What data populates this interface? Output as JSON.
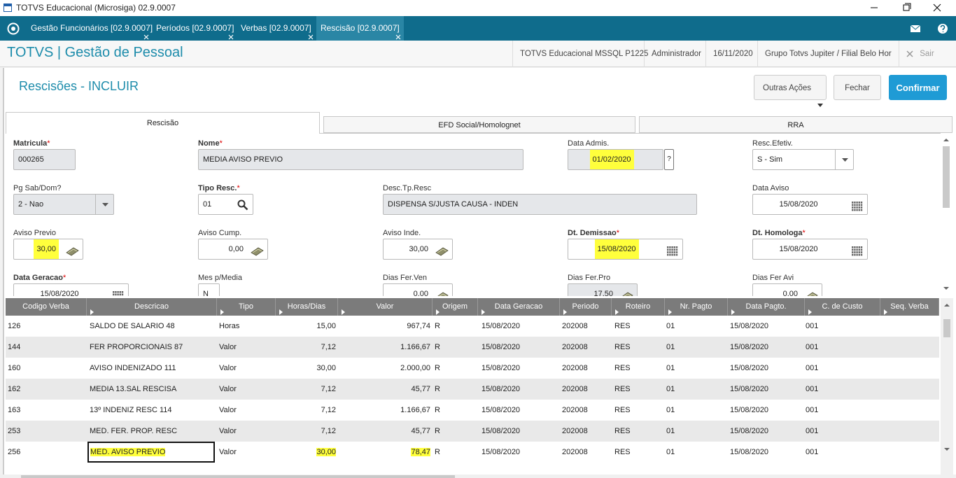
{
  "window": {
    "title": "TOTVS Educacional (Microsiga) 02.9.0007"
  },
  "tabs": [
    "Gestão Funcionários [02.9.0007]",
    "Períodos [02.9.0007]",
    "Verbas [02.9.0007]",
    "Rescisão [02.9.0007]"
  ],
  "header": {
    "app": "TOTVS | Gestão de Pessoal",
    "items": [
      "TOTVS Educacional MSSQL P1225",
      "Administrador",
      "16/11/2020",
      "Grupo Totvs Jupiter / Filial Belo Hor"
    ],
    "exit": "Sair"
  },
  "page": {
    "title": "Rescisões - INCLUIR",
    "buttons": [
      "Outras Ações",
      "Fechar",
      "Confirmar"
    ],
    "help_button": "?"
  },
  "form_tabs": [
    "Rescisão",
    "EFD Social/Homolognet",
    "RRA"
  ],
  "required_mark": "*",
  "fields": [
    {
      "label": "Matricula",
      "required": true,
      "value": "000265"
    },
    {
      "label": "Nome",
      "required": true,
      "value": "MEDIA AVISO PREVIO"
    },
    {
      "label": "Data Admis.",
      "required": false,
      "value": "01/02/2020"
    },
    {
      "label": "Resc.Efetiv.",
      "required": false,
      "value": "S - Sim"
    },
    {
      "label": "Pg Sab/Dom?",
      "required": false,
      "value": "2 - Nao"
    },
    {
      "label": "Tipo Resc.",
      "required": true,
      "value": "01"
    },
    {
      "label": "Desc.Tp.Resc",
      "required": false,
      "value": "DISPENSA S/JUSTA CAUSA - INDEN"
    },
    {
      "label": "Data Aviso",
      "required": false,
      "value": "15/08/2020"
    },
    {
      "label": "Aviso Previo",
      "required": false,
      "value": "30,00"
    },
    {
      "label": "Aviso Cump.",
      "required": false,
      "value": "0,00"
    },
    {
      "label": "Aviso Inde.",
      "required": false,
      "value": "30,00"
    },
    {
      "label": "Dt. Demissao",
      "required": true,
      "value": "15/08/2020"
    },
    {
      "label": "Dt. Homologa",
      "required": true,
      "value": "15/08/2020"
    },
    {
      "label": "Data Geracao",
      "required": true,
      "value": "15/08/2020"
    },
    {
      "label": "Mes p/Media",
      "required": false,
      "value": "N"
    },
    {
      "label": "Dias Fer.Ven",
      "required": false,
      "value": "0,00"
    },
    {
      "label": "Dias Fer.Pro",
      "required": false,
      "value": "17,50"
    },
    {
      "label": "Dias Fer Avi",
      "required": false,
      "value": "0,00"
    }
  ],
  "table": {
    "columns": [
      "Codigo Verba",
      "Descricao",
      "Tipo",
      "Horas/Dias",
      "Valor",
      "Origem",
      "Data Geracao",
      "Periodo",
      "Roteiro",
      "Nr. Pagto",
      "Data Pagto.",
      "C. de Custo",
      "Seq. Verba"
    ],
    "rows": [
      [
        "126",
        "SALDO DE SALARIO 48",
        "Horas",
        "15,00",
        "967,74",
        "R",
        "15/08/2020",
        "202008",
        "RES",
        "01",
        "15/08/2020",
        "001",
        ""
      ],
      [
        "144",
        "FER PROPORCIONAIS 87",
        "Valor",
        "7,12",
        "1.166,67",
        "R",
        "15/08/2020",
        "202008",
        "RES",
        "01",
        "15/08/2020",
        "001",
        ""
      ],
      [
        "160",
        "AVISO INDENIZADO 111",
        "Valor",
        "30,00",
        "2.000,00",
        "R",
        "15/08/2020",
        "202008",
        "RES",
        "01",
        "15/08/2020",
        "001",
        ""
      ],
      [
        "162",
        "MEDIA 13.SAL RESCISA",
        "Valor",
        "7,12",
        "45,77",
        "R",
        "15/08/2020",
        "202008",
        "RES",
        "01",
        "15/08/2020",
        "001",
        ""
      ],
      [
        "163",
        "13º INDENIZ RESC 114",
        "Valor",
        "7,12",
        "1.166,67",
        "R",
        "15/08/2020",
        "202008",
        "RES",
        "01",
        "15/08/2020",
        "001",
        ""
      ],
      [
        "253",
        "MED. FER. PROP. RESC",
        "Valor",
        "7,12",
        "45,77",
        "R",
        "15/08/2020",
        "202008",
        "RES",
        "01",
        "15/08/2020",
        "001",
        ""
      ],
      [
        "256",
        "MED. AVISO PREVIO",
        "Valor",
        "30,00",
        "78,47",
        "R",
        "15/08/2020",
        "202008",
        "RES",
        "01",
        "15/08/2020",
        "001",
        ""
      ]
    ]
  }
}
